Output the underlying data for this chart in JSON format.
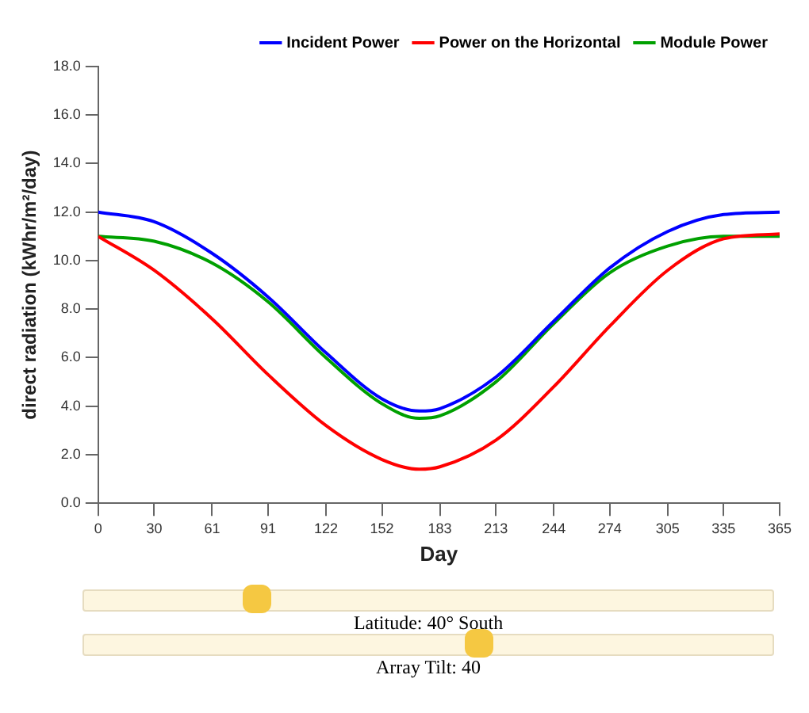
{
  "chart_data": {
    "type": "line",
    "xlabel": "Day",
    "ylabel": "direct radiation (kWhr/m²/day)",
    "x": [
      0,
      30,
      61,
      91,
      122,
      152,
      172,
      183,
      213,
      244,
      274,
      305,
      335,
      365
    ],
    "series": [
      {
        "name": "Incident Power",
        "color": "#0000ff",
        "values": [
          12.0,
          11.6,
          10.3,
          8.5,
          6.2,
          4.3,
          3.8,
          3.9,
          5.2,
          7.5,
          9.7,
          11.2,
          11.9,
          12.0
        ]
      },
      {
        "name": "Power on the Horizontal",
        "color": "#ff0000",
        "values": [
          11.0,
          9.6,
          7.6,
          5.3,
          3.2,
          1.8,
          1.4,
          1.5,
          2.6,
          4.8,
          7.3,
          9.6,
          10.9,
          11.1
        ]
      },
      {
        "name": "Module Power",
        "color": "#00a000",
        "values": [
          11.0,
          10.8,
          9.9,
          8.3,
          6.0,
          4.1,
          3.5,
          3.6,
          5.0,
          7.4,
          9.5,
          10.6,
          11.0,
          11.0
        ]
      }
    ],
    "xlim": [
      0,
      365
    ],
    "xticks": [
      0,
      30,
      61,
      91,
      122,
      152,
      183,
      213,
      244,
      274,
      305,
      335,
      365
    ],
    "ylim": [
      0,
      18
    ],
    "yticks": [
      {
        "value": 0,
        "label": "0.0"
      },
      {
        "value": 2,
        "label": "2.0"
      },
      {
        "value": 4,
        "label": "4.0"
      },
      {
        "value": 6,
        "label": "6.0"
      },
      {
        "value": 8,
        "label": "8.0"
      },
      {
        "value": 10,
        "label": "10.0"
      },
      {
        "value": 12,
        "label": "12.0"
      },
      {
        "value": 14,
        "label": "14.0"
      },
      {
        "value": 16,
        "label": "16.0"
      },
      {
        "value": 18,
        "label": "18.0"
      }
    ],
    "grid": false,
    "legend": "top right",
    "marker": "none",
    "line_style": "solid",
    "annotations": [
      "Latitude: 40° South",
      "Array Tilt: 40"
    ]
  }
}
